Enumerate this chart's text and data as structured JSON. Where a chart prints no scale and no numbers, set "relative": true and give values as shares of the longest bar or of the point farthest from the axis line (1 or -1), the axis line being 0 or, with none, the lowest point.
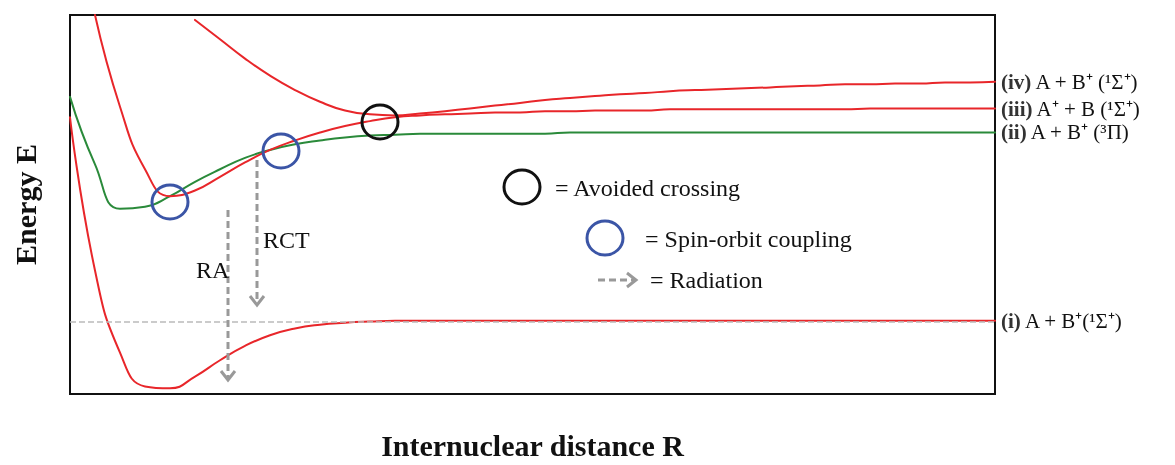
{
  "chart_data": {
    "type": "line",
    "relative": true,
    "xlabel": "Internuclear distance R",
    "ylabel": "Energy E",
    "categories": [
      null,
      null,
      null,
      null,
      null,
      null,
      null,
      null,
      null,
      null,
      null,
      null,
      null,
      null,
      null,
      null,
      null,
      null,
      null,
      null,
      null,
      null,
      null,
      null,
      null,
      null,
      null,
      null,
      null,
      null,
      null,
      null,
      null,
      null,
      null,
      null,
      null,
      null
    ],
    "series": [
      {
        "name": "(i) A + B⁺(¹Σ⁺)",
        "color": "#e8262a",
        "values": [
          0.73,
          0.326,
          0.109,
          0.02,
          0.015,
          0.046,
          0.089,
          0.127,
          0.155,
          0.173,
          0.183,
          0.188,
          0.191,
          0.193,
          0.193,
          0.193,
          0.193,
          0.193,
          0.193,
          0.193,
          0.193,
          0.193,
          0.193,
          0.193,
          0.193,
          0.193,
          0.193,
          0.193,
          0.193,
          0.193,
          0.193,
          0.193,
          0.193,
          0.193,
          0.193,
          0.193,
          0.193,
          0.193
        ]
      },
      {
        "name": "(ii) A + B⁺ (³Π)",
        "color": "#2a8a3a",
        "values": [
          0.784,
          0.606,
          0.489,
          0.494,
          0.522,
          0.56,
          0.593,
          0.623,
          0.644,
          0.659,
          0.669,
          0.677,
          0.682,
          0.684,
          0.687,
          0.687,
          0.687,
          0.687,
          0.687,
          0.687,
          0.69,
          0.69,
          0.69,
          0.69,
          0.69,
          0.69,
          0.69,
          0.69,
          0.69,
          0.69,
          0.69,
          0.69,
          0.69,
          0.69,
          0.69,
          0.69,
          0.69,
          0.69
        ]
      },
      {
        "name": "(iii) A⁺ + B (¹Σ⁺)",
        "color": "#e8262a",
        "values": [
          null,
          1.0,
          0.758,
          0.593,
          0.522,
          0.537,
          0.573,
          0.611,
          0.644,
          0.669,
          0.69,
          0.707,
          0.72,
          0.73,
          0.735,
          0.738,
          0.74,
          0.743,
          0.743,
          0.746,
          0.746,
          0.748,
          0.748,
          0.748,
          0.751,
          0.751,
          0.751,
          0.751,
          0.751,
          0.751,
          0.751,
          0.751,
          0.753,
          0.753,
          0.753,
          0.753,
          0.753,
          0.753
        ]
      },
      {
        "name": "(iv) A + B⁺ (¹Σ⁺)",
        "color": "#e8262a",
        "values": [
          null,
          null,
          null,
          null,
          null,
          0.987,
          0.936,
          0.885,
          0.84,
          0.802,
          0.771,
          0.748,
          0.738,
          0.735,
          0.74,
          0.746,
          0.753,
          0.761,
          0.768,
          0.776,
          0.781,
          0.786,
          0.791,
          0.794,
          0.799,
          0.802,
          0.804,
          0.807,
          0.809,
          0.812,
          0.814,
          0.817,
          0.817,
          0.819,
          0.819,
          0.822,
          0.822,
          0.824
        ]
      }
    ],
    "ref_lines": [
      {
        "axis": "y",
        "value": 0.193,
        "color": "#bbbbbb",
        "line_style": "dashed"
      }
    ],
    "annotations": [
      "RA",
      "RCT",
      "= Avoided crossing",
      "= Spin-orbit coupling",
      "= Radiation"
    ],
    "grid": false,
    "legend": false,
    "marker": "none",
    "line_style": "solid"
  }
}
